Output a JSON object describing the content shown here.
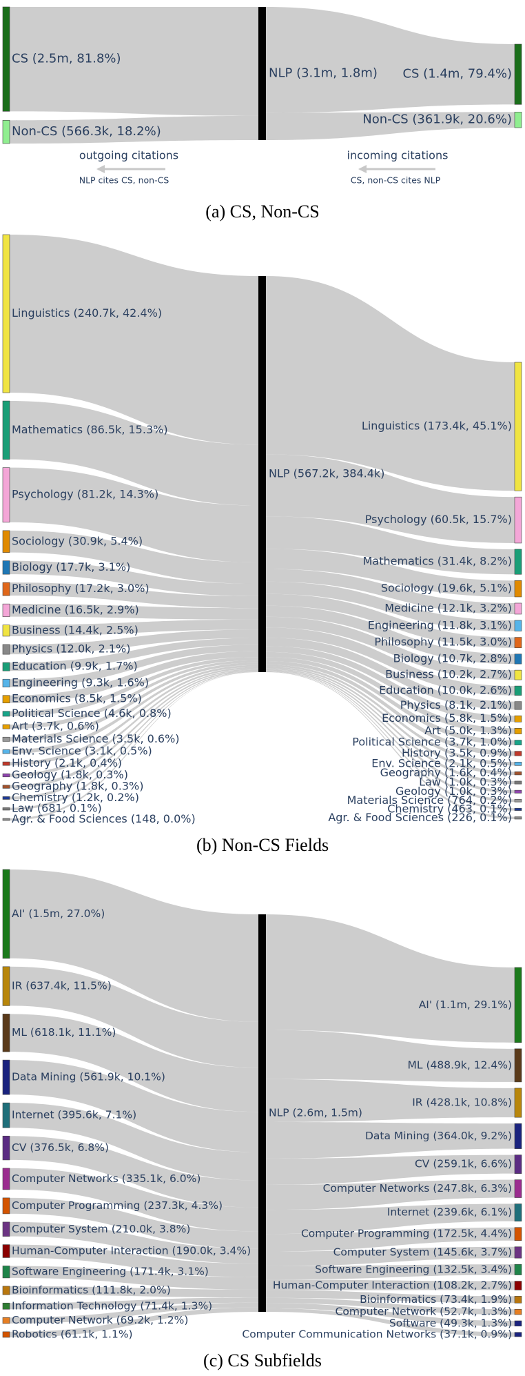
{
  "chart_data": [
    {
      "type": "sankey",
      "caption": "(a) CS, Non-CS",
      "center": {
        "label": "NLP (3.1m, 1.8m)"
      },
      "left": [
        {
          "label": "CS (2.5m, 81.8%)",
          "value": 81.8,
          "color": "#1a6e1a"
        },
        {
          "label": "Non-CS (566.3k, 18.2%)",
          "value": 18.2,
          "color": "#90ee90"
        }
      ],
      "right": [
        {
          "label": "CS (1.4m, 79.4%)",
          "value": 79.4,
          "color": "#1a6e1a"
        },
        {
          "label": "Non-CS (361.9k, 20.6%)",
          "value": 20.6,
          "color": "#90ee90"
        }
      ],
      "notes": [
        {
          "text": "outgoing citations",
          "subtext": "NLP cites CS, non-CS"
        },
        {
          "text": "incoming citations",
          "subtext": "CS, non-CS cites NLP"
        }
      ]
    },
    {
      "type": "sankey",
      "caption": "(b) Non-CS Fields",
      "center": {
        "label": "NLP (567.2k, 384.4k)"
      },
      "left": [
        {
          "label": "Linguistics  (240.7k, 42.4%)",
          "value": 42.4,
          "color": "#f0e442"
        },
        {
          "label": "Mathematics  (86.5k, 15.3%)",
          "value": 15.3,
          "color": "#1a9e77"
        },
        {
          "label": "Psychology  (81.2k, 14.3%)",
          "value": 14.3,
          "color": "#f4a6d7"
        },
        {
          "label": "Sociology  (30.9k, 5.4%)",
          "value": 5.4,
          "color": "#e08a00"
        },
        {
          "label": "Biology  (17.7k, 3.1%)",
          "value": 3.1,
          "color": "#1f77b4"
        },
        {
          "label": "Philosophy  (17.2k, 3.0%)",
          "value": 3.0,
          "color": "#e0671a"
        },
        {
          "label": "Medicine  (16.5k, 2.9%)",
          "value": 2.9,
          "color": "#f4a6d7"
        },
        {
          "label": "Business  (14.4k, 2.5%)",
          "value": 2.5,
          "color": "#f0e442"
        },
        {
          "label": "Physics  (12.0k, 2.1%)",
          "value": 2.1,
          "color": "#888888"
        },
        {
          "label": "Education  (9.9k, 1.7%)",
          "value": 1.7,
          "color": "#1a9e77"
        },
        {
          "label": "Engineering  (9.3k, 1.6%)",
          "value": 1.6,
          "color": "#56b4e9"
        },
        {
          "label": "Economics  (8.5k, 1.5%)",
          "value": 1.5,
          "color": "#e69f00"
        },
        {
          "label": "Political Science  (4.6k, 0.8%)",
          "value": 0.8,
          "color": "#17a589"
        },
        {
          "label": "Art  (3.7k, 0.6%)",
          "value": 0.6,
          "color": "#e69f00"
        },
        {
          "label": "Materials Science  (3.5k, 0.6%)",
          "value": 0.6,
          "color": "#999999"
        },
        {
          "label": "Env. Science  (3.1k, 0.5%)",
          "value": 0.5,
          "color": "#56b4e9"
        },
        {
          "label": "History  (2.1k, 0.4%)",
          "value": 0.4,
          "color": "#c0392b"
        },
        {
          "label": "Geology  (1.8k, 0.3%)",
          "value": 0.3,
          "color": "#8e44ad"
        },
        {
          "label": "Geography  (1.8k, 0.3%)",
          "value": 0.3,
          "color": "#a0522d"
        },
        {
          "label": "Chemistry  (1.2k, 0.2%)",
          "value": 0.2,
          "color": "#1f3a93"
        },
        {
          "label": "Law  (681, 0.1%)",
          "value": 0.1,
          "color": "#777777"
        },
        {
          "label": "Agr. & Food Sciences  (148, 0.0%)",
          "value": 0.0,
          "color": "#888888"
        }
      ],
      "right": [
        {
          "label": "Linguistics (173.4k, 45.1%)",
          "value": 45.1,
          "color": "#f0e442"
        },
        {
          "label": "Psychology (60.5k, 15.7%)",
          "value": 15.7,
          "color": "#f4a6d7"
        },
        {
          "label": "Mathematics (31.4k, 8.2%)",
          "value": 8.2,
          "color": "#1a9e77"
        },
        {
          "label": "Sociology (19.6k, 5.1%)",
          "value": 5.1,
          "color": "#e08a00"
        },
        {
          "label": "Medicine (12.1k, 3.2%)",
          "value": 3.2,
          "color": "#f4a6d7"
        },
        {
          "label": "Engineering (11.8k, 3.1%)",
          "value": 3.1,
          "color": "#56b4e9"
        },
        {
          "label": "Philosophy (11.5k, 3.0%)",
          "value": 3.0,
          "color": "#e0671a"
        },
        {
          "label": "Biology (10.7k, 2.8%)",
          "value": 2.8,
          "color": "#1f77b4"
        },
        {
          "label": "Business (10.2k, 2.7%)",
          "value": 2.7,
          "color": "#f0e442"
        },
        {
          "label": "Education (10.0k, 2.6%)",
          "value": 2.6,
          "color": "#1a9e77"
        },
        {
          "label": "Physics (8.1k, 2.1%)",
          "value": 2.1,
          "color": "#888888"
        },
        {
          "label": "Economics (5.8k, 1.5%)",
          "value": 1.5,
          "color": "#e69f00"
        },
        {
          "label": "Art (5.0k, 1.3%)",
          "value": 1.3,
          "color": "#e69f00"
        },
        {
          "label": "Political Science (3.7k, 1.0%)",
          "value": 1.0,
          "color": "#17a589"
        },
        {
          "label": "History (3.5k, 0.9%)",
          "value": 0.9,
          "color": "#c0392b"
        },
        {
          "label": "Env. Science (2.1k, 0.5%)",
          "value": 0.5,
          "color": "#56b4e9"
        },
        {
          "label": "Geography (1.6k, 0.4%)",
          "value": 0.4,
          "color": "#a0522d"
        },
        {
          "label": "Law (1.0k, 0.3%)",
          "value": 0.3,
          "color": "#777777"
        },
        {
          "label": "Geology (1.0k, 0.3%)",
          "value": 0.3,
          "color": "#8e44ad"
        },
        {
          "label": "Materials Science (764, 0.2%)",
          "value": 0.2,
          "color": "#999999"
        },
        {
          "label": "Chemistry (463, 0.1%)",
          "value": 0.1,
          "color": "#1f3a93"
        },
        {
          "label": "Agr. & Food Sciences (226, 0.1%)",
          "value": 0.1,
          "color": "#888888"
        }
      ]
    },
    {
      "type": "sankey",
      "caption": "(c) CS Subfields",
      "center": {
        "label": "NLP (2.6m, 1.5m)"
      },
      "left": [
        {
          "label": "AI' (1.5m, 27.0%)",
          "value": 27.0,
          "color": "#1b7a1b"
        },
        {
          "label": "IR  (637.4k, 11.5%)",
          "value": 11.5,
          "color": "#b8860b"
        },
        {
          "label": "ML  (618.1k, 11.1%)",
          "value": 11.1,
          "color": "#5a3a1a"
        },
        {
          "label": "Data Mining  (561.9k, 10.1%)",
          "value": 10.1,
          "color": "#1a237e"
        },
        {
          "label": "Internet  (395.6k, 7.1%)",
          "value": 7.1,
          "color": "#1f6f7a"
        },
        {
          "label": "CV  (376.5k, 6.8%)",
          "value": 6.8,
          "color": "#5b2c83"
        },
        {
          "label": "Computer Networks  (335.1k, 6.0%)",
          "value": 6.0,
          "color": "#9b2d8f"
        },
        {
          "label": "Computer Programming  (237.3k, 4.3%)",
          "value": 4.3,
          "color": "#d35400"
        },
        {
          "label": "Computer System  (210.0k, 3.8%)",
          "value": 3.8,
          "color": "#6c3483"
        },
        {
          "label": "Human-Computer Interaction  (190.0k, 3.4%)",
          "value": 3.4,
          "color": "#8b0000"
        },
        {
          "label": "Software Engineering  (171.4k, 3.1%)",
          "value": 3.1,
          "color": "#1e8449"
        },
        {
          "label": "Bioinformatics  (111.8k, 2.0%)",
          "value": 2.0,
          "color": "#b9770e"
        },
        {
          "label": "Information Technology  (71.4k, 1.3%)",
          "value": 1.3,
          "color": "#2e7d32"
        },
        {
          "label": "Computer Network  (69.2k, 1.2%)",
          "value": 1.2,
          "color": "#e67e22"
        },
        {
          "label": "Robotics  (61.1k, 1.1%)",
          "value": 1.1,
          "color": "#d35400"
        }
      ],
      "right": [
        {
          "label": "AI' (1.1m, 29.1%)",
          "value": 29.1,
          "color": "#1b7a1b"
        },
        {
          "label": "ML (488.9k, 12.4%)",
          "value": 12.4,
          "color": "#5a3a1a"
        },
        {
          "label": "IR (428.1k, 10.8%)",
          "value": 10.8,
          "color": "#b8860b"
        },
        {
          "label": "Data Mining (364.0k, 9.2%)",
          "value": 9.2,
          "color": "#1a237e"
        },
        {
          "label": "CV (259.1k, 6.6%)",
          "value": 6.6,
          "color": "#5b2c83"
        },
        {
          "label": "Computer Networks (247.8k, 6.3%)",
          "value": 6.3,
          "color": "#9b2d8f"
        },
        {
          "label": "Internet (239.6k, 6.1%)",
          "value": 6.1,
          "color": "#1f6f7a"
        },
        {
          "label": "Computer Programming (172.5k, 4.4%)",
          "value": 4.4,
          "color": "#d35400"
        },
        {
          "label": "Computer System (145.6k, 3.7%)",
          "value": 3.7,
          "color": "#6c3483"
        },
        {
          "label": "Software Engineering (132.5k, 3.4%)",
          "value": 3.4,
          "color": "#1e8449"
        },
        {
          "label": "Human-Computer Interaction (108.2k, 2.7%)",
          "value": 2.7,
          "color": "#8b0000"
        },
        {
          "label": "Bioinformatics (73.4k, 1.9%)",
          "value": 1.9,
          "color": "#b9770e"
        },
        {
          "label": "Computer Network (52.7k, 1.3%)",
          "value": 1.3,
          "color": "#e67e22"
        },
        {
          "label": "Software (49.3k, 1.3%)",
          "value": 1.3,
          "color": "#1a237e"
        },
        {
          "label": "Computer Communication Networks (37.1k, 0.9%)",
          "value": 0.9,
          "color": "#1a237e"
        }
      ]
    }
  ]
}
